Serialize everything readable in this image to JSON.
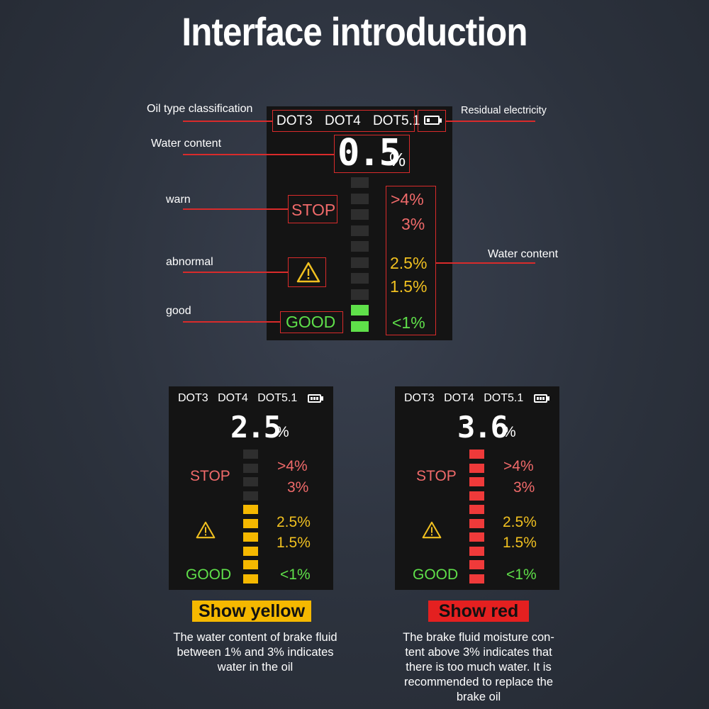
{
  "title": "Interface introduction",
  "main_screen": {
    "oil_types": [
      "DOT3",
      "DOT4",
      "DOT5.1"
    ],
    "water_value": "0.5",
    "water_unit": "%",
    "stop_label": "STOP",
    "good_label": "GOOD",
    "scale": [
      ">4%",
      "3%",
      "2.5%",
      "1.5%",
      "<1%"
    ],
    "bar_level_filled": 2,
    "bar_level_total": 10,
    "callouts": {
      "oil_type": "Oil type classification",
      "battery": "Residual electricity",
      "water_content_left": "Water content",
      "warn": "warn",
      "abnormal": "abnormal",
      "good": "good",
      "water_content_right": "Water content"
    }
  },
  "yellow_screen": {
    "oil_types": [
      "DOT3",
      "DOT4",
      "DOT5.1"
    ],
    "water_value": "2.5",
    "water_unit": "%",
    "stop_label": "STOP",
    "good_label": "GOOD",
    "scale": [
      ">4%",
      "3%",
      "2.5%",
      "1.5%",
      "<1%"
    ],
    "bar_level_filled": 6,
    "bar_level_total": 10,
    "bar_color": "#f5b800"
  },
  "red_screen": {
    "oil_types": [
      "DOT3",
      "DOT4",
      "DOT5.1"
    ],
    "water_value": "3.6",
    "water_unit": "%",
    "stop_label": "STOP",
    "good_label": "GOOD",
    "scale": [
      ">4%",
      "3%",
      "2.5%",
      "1.5%",
      "<1%"
    ],
    "bar_level_filled": 10,
    "bar_level_total": 10,
    "bar_color": "#ef3a3a"
  },
  "colors": {
    "good_green": "#5fe04a",
    "warn_yellow": "#f0c020",
    "stop_red": "#f06a6a",
    "callout_red": "#d92b2b",
    "tag_yellow": "#f5b800",
    "tag_red": "#e42020"
  },
  "captions": {
    "yellow_tag": "Show yellow",
    "yellow_text": [
      "The water content of brake fluid",
      "between 1% and 3% indicates",
      "water in the oil"
    ],
    "red_tag": "Show red",
    "red_text": [
      "The brake fluid moisture con-",
      "tent above 3% indicates that",
      "there is too much water. It is",
      "recommended to replace the",
      "brake oil"
    ]
  }
}
